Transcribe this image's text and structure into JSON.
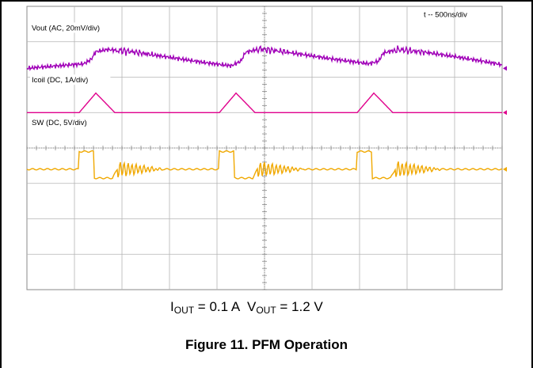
{
  "chart_data": {
    "type": "line",
    "title": "",
    "timebase_label": "t -- 500ns/div",
    "divisions": {
      "x": 10,
      "y": 8
    },
    "grid": true,
    "background": "#ffffff",
    "grid_color": "#b4b4b4",
    "time_unit": "div",
    "series": [
      {
        "name": "Vout (AC, 20mV/div)",
        "color": "#a000b8",
        "baseline_div": 1.75,
        "points": [
          [
            0.0,
            1.75
          ],
          [
            1.2,
            1.62
          ],
          [
            1.35,
            1.5
          ],
          [
            1.45,
            1.28
          ],
          [
            1.7,
            1.22
          ],
          [
            2.2,
            1.28
          ],
          [
            2.7,
            1.38
          ],
          [
            3.2,
            1.48
          ],
          [
            3.7,
            1.58
          ],
          [
            4.3,
            1.68
          ],
          [
            4.5,
            1.55
          ],
          [
            4.6,
            1.3
          ],
          [
            4.9,
            1.2
          ],
          [
            5.4,
            1.28
          ],
          [
            5.9,
            1.38
          ],
          [
            6.5,
            1.5
          ],
          [
            7.2,
            1.62
          ],
          [
            7.4,
            1.55
          ],
          [
            7.5,
            1.32
          ],
          [
            7.8,
            1.22
          ],
          [
            8.4,
            1.3
          ],
          [
            9.0,
            1.42
          ],
          [
            9.6,
            1.55
          ],
          [
            10.0,
            1.65
          ]
        ]
      },
      {
        "name": "Icoil (DC, 1A/div)",
        "color": "#e0008c",
        "baseline_div": 3.0,
        "points": [
          [
            0.0,
            3.0
          ],
          [
            1.1,
            3.0
          ],
          [
            1.45,
            2.45
          ],
          [
            1.85,
            3.0
          ],
          [
            4.05,
            3.0
          ],
          [
            4.4,
            2.45
          ],
          [
            4.8,
            3.0
          ],
          [
            6.95,
            3.0
          ],
          [
            7.3,
            2.45
          ],
          [
            7.7,
            3.0
          ],
          [
            10.0,
            3.0
          ]
        ]
      },
      {
        "name": "SW (DC, 5V/div)",
        "color": "#f0a800",
        "baseline_div": 4.6,
        "points": [
          [
            0.0,
            4.6
          ],
          [
            1.08,
            4.6
          ],
          [
            1.1,
            4.1
          ],
          [
            1.4,
            4.1
          ],
          [
            1.42,
            4.85
          ],
          [
            1.8,
            4.85
          ],
          [
            1.9,
            4.6
          ],
          [
            2.5,
            4.6
          ],
          [
            4.03,
            4.6
          ],
          [
            4.05,
            4.1
          ],
          [
            4.35,
            4.1
          ],
          [
            4.37,
            4.85
          ],
          [
            4.75,
            4.85
          ],
          [
            4.85,
            4.6
          ],
          [
            5.5,
            4.6
          ],
          [
            6.93,
            4.6
          ],
          [
            6.95,
            4.1
          ],
          [
            7.25,
            4.1
          ],
          [
            7.27,
            4.85
          ],
          [
            7.65,
            4.85
          ],
          [
            7.75,
            4.6
          ],
          [
            8.4,
            4.6
          ],
          [
            10.0,
            4.6
          ]
        ]
      }
    ],
    "ringing": [
      {
        "start": 1.9,
        "end": 2.9
      },
      {
        "start": 4.85,
        "end": 5.85
      },
      {
        "start": 7.75,
        "end": 8.75
      }
    ]
  },
  "conditions": {
    "iout_main": "I",
    "iout_sub": "OUT",
    "iout_value": " = 0.1 A",
    "vout_main": "V",
    "vout_sub": "OUT",
    "vout_value": " = 1.2 V"
  },
  "caption": "Figure 11.  PFM Operation"
}
